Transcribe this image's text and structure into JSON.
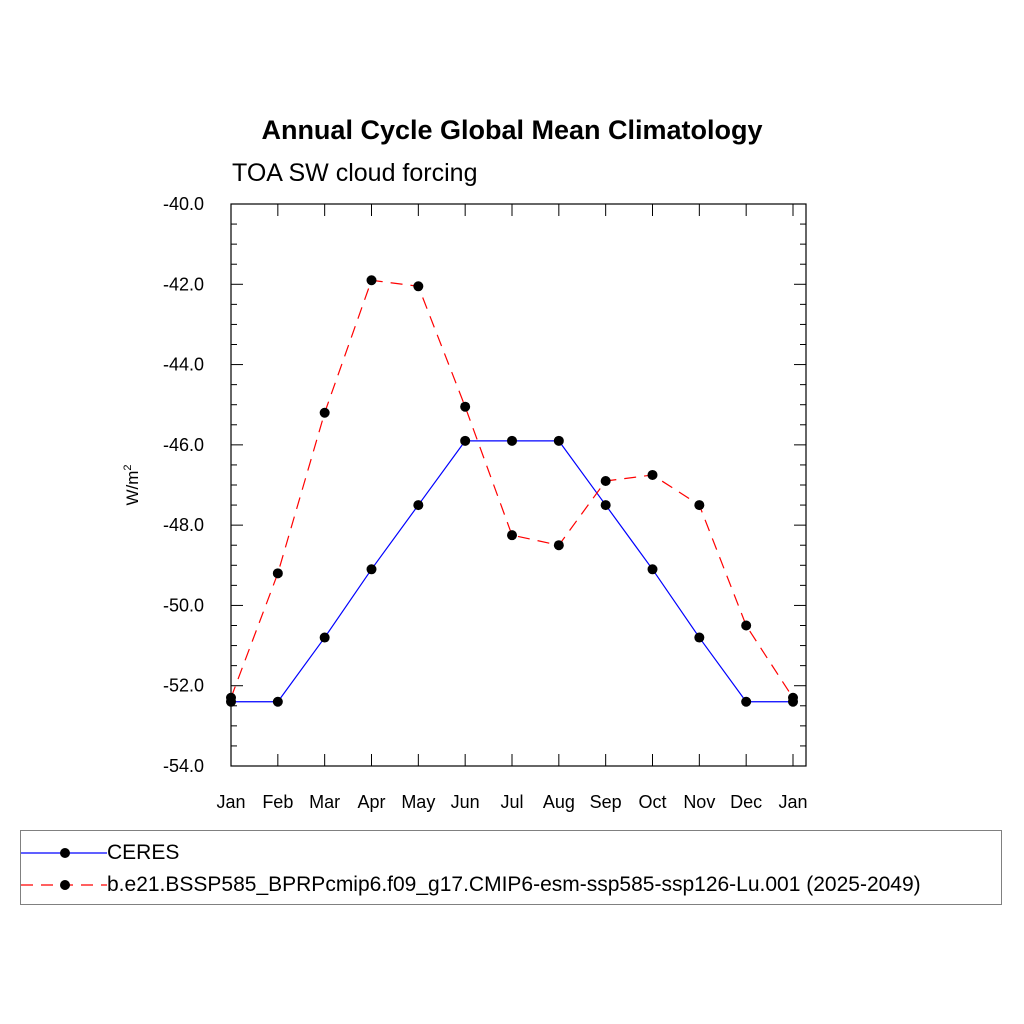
{
  "chart_data": {
    "type": "line",
    "title": "Annual Cycle Global Mean Climatology",
    "subtitle": "TOA SW cloud forcing",
    "ylabel": "W/m",
    "ylabel_sup": "2",
    "xlabel": "",
    "categories": [
      "Jan",
      "Feb",
      "Mar",
      "Apr",
      "May",
      "Jun",
      "Jul",
      "Aug",
      "Sep",
      "Oct",
      "Nov",
      "Dec",
      "Jan"
    ],
    "ylim": [
      -54.0,
      -40.0
    ],
    "yticks": [
      "-40.0",
      "-42.0",
      "-44.0",
      "-46.0",
      "-48.0",
      "-50.0",
      "-52.0",
      "-54.0"
    ],
    "ytick_values": [
      -40,
      -42,
      -44,
      -46,
      -48,
      -50,
      -52,
      -54
    ],
    "grid": false,
    "legend_position": "bottom",
    "series": [
      {
        "name": "CERES",
        "color": "#0000ff",
        "dash": "solid",
        "marker": "circle",
        "values": [
          -52.4,
          -52.4,
          -50.8,
          -49.1,
          -47.5,
          -45.9,
          -45.9,
          -45.9,
          -47.5,
          -49.1,
          -50.8,
          -52.4,
          -52.4
        ]
      },
      {
        "name": "b.e21.BSSP585_BPRPcmip6.f09_g17.CMIP6-esm-ssp585-ssp126-Lu.001 (2025-2049)",
        "color": "#ff0000",
        "dash": "dashed",
        "marker": "circle",
        "values": [
          -52.3,
          -49.2,
          -45.2,
          -41.9,
          -42.05,
          -45.05,
          -48.25,
          -48.5,
          -46.9,
          -46.75,
          -47.5,
          -50.5,
          -52.3
        ]
      }
    ]
  }
}
